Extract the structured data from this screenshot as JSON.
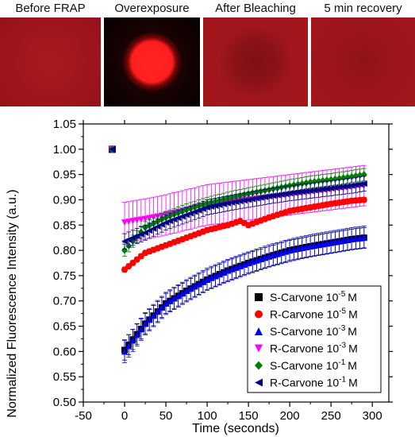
{
  "panels": [
    {
      "title": "Before FRAP"
    },
    {
      "title": "Overexposure"
    },
    {
      "title": "After Bleaching"
    },
    {
      "title": "5 min recovery"
    }
  ],
  "colors": {
    "bg_red": "#a3151c",
    "spot_red": "#ff2020",
    "dark": "#0a0202"
  },
  "chart_data": {
    "type": "scatter",
    "xlabel": "Time (seconds)",
    "ylabel": "Normalized Fluorescence Intensity (a.u.)",
    "xlim": [
      -50,
      320
    ],
    "ylim": [
      0.5,
      1.05
    ],
    "xticks": [
      "-50",
      "0",
      "50",
      "100",
      "150",
      "200",
      "250",
      "300"
    ],
    "yticks": [
      "0.50",
      "0.55",
      "0.60",
      "0.65",
      "0.70",
      "0.75",
      "0.80",
      "0.85",
      "0.90",
      "0.95",
      "1.00",
      "1.05"
    ],
    "prebleach": {
      "x": -15,
      "y": 1.0
    },
    "legend_position": "bottom-right",
    "series": [
      {
        "name": "S-Carvone 10",
        "exp": "-5",
        "unit": "M",
        "marker": "square",
        "color": "#000000",
        "x": [
          0,
          25,
          50,
          75,
          100,
          125,
          150,
          175,
          200,
          225,
          250,
          275,
          290
        ],
        "y": [
          0.603,
          0.655,
          0.695,
          0.72,
          0.742,
          0.76,
          0.775,
          0.788,
          0.8,
          0.808,
          0.815,
          0.822,
          0.825
        ],
        "err": 0.02
      },
      {
        "name": "R-Carvone 10",
        "exp": "-5",
        "unit": "M",
        "marker": "circle",
        "color": "#ff0000",
        "x": [
          0,
          25,
          50,
          75,
          100,
          125,
          140,
          150,
          175,
          200,
          225,
          250,
          275,
          290
        ],
        "y": [
          0.762,
          0.795,
          0.81,
          0.825,
          0.84,
          0.85,
          0.858,
          0.85,
          0.865,
          0.878,
          0.885,
          0.892,
          0.898,
          0.9
        ],
        "err": 0.005
      },
      {
        "name": "S-Carvone 10",
        "exp": "-3",
        "unit": "M",
        "marker": "triangle-up",
        "color": "#0000ff",
        "x": [
          0,
          25,
          50,
          75,
          100,
          125,
          150,
          175,
          200,
          225,
          250,
          275,
          290
        ],
        "y": [
          0.6,
          0.655,
          0.695,
          0.72,
          0.743,
          0.76,
          0.775,
          0.789,
          0.8,
          0.809,
          0.816,
          0.823,
          0.826
        ],
        "err": 0.022
      },
      {
        "name": "R-Carvone 10",
        "exp": "-3",
        "unit": "M",
        "marker": "triangle-down",
        "color": "#ff00ff",
        "x": [
          0,
          25,
          50,
          75,
          100,
          125,
          150,
          175,
          200,
          225,
          250,
          275,
          290
        ],
        "y": [
          0.855,
          0.862,
          0.87,
          0.88,
          0.89,
          0.895,
          0.9,
          0.905,
          0.91,
          0.915,
          0.92,
          0.925,
          0.928
        ],
        "err": 0.04
      },
      {
        "name": "S-Carvone 10",
        "exp": "-1",
        "unit": "M",
        "marker": "diamond",
        "color": "#008000",
        "x": [
          0,
          25,
          50,
          75,
          100,
          125,
          150,
          175,
          200,
          225,
          250,
          275,
          290
        ],
        "y": [
          0.8,
          0.845,
          0.865,
          0.88,
          0.893,
          0.903,
          0.912,
          0.92,
          0.928,
          0.935,
          0.94,
          0.946,
          0.95
        ],
        "err": 0.012
      },
      {
        "name": "R-Carvone 10",
        "exp": "-1",
        "unit": "M",
        "marker": "triangle-left",
        "color": "#000080",
        "x": [
          0,
          25,
          50,
          75,
          100,
          125,
          150,
          175,
          200,
          225,
          250,
          275,
          290
        ],
        "y": [
          0.818,
          0.835,
          0.855,
          0.87,
          0.885,
          0.893,
          0.9,
          0.907,
          0.913,
          0.918,
          0.923,
          0.928,
          0.932
        ],
        "err": 0.015
      }
    ]
  }
}
